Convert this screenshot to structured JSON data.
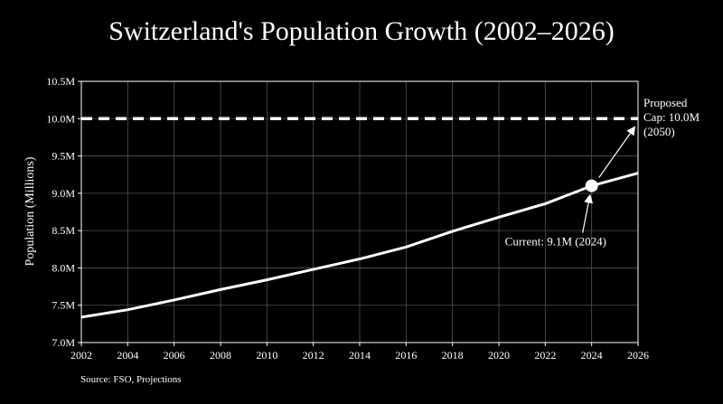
{
  "chart_data": {
    "type": "line",
    "title": "Switzerland's Population Growth (2002–2026)",
    "ylabel": "Population (Millions)",
    "xlabel": "",
    "xlim": [
      2002,
      2026
    ],
    "ylim": [
      7.0,
      10.5
    ],
    "x_ticks": [
      "2002",
      "2004",
      "2006",
      "2008",
      "2010",
      "2012",
      "2014",
      "2016",
      "2018",
      "2020",
      "2022",
      "2024",
      "2026"
    ],
    "y_ticks": [
      "7.0M",
      "7.5M",
      "8.0M",
      "8.5M",
      "9.0M",
      "9.5M",
      "10.0M",
      "10.5M"
    ],
    "grid": true,
    "series": [
      {
        "x": [
          2002,
          2004,
          2006,
          2008,
          2010,
          2012,
          2014,
          2016,
          2018,
          2020,
          2022,
          2024,
          2026
        ],
        "y": [
          7.34,
          7.44,
          7.57,
          7.71,
          7.84,
          7.98,
          8.12,
          8.28,
          8.49,
          8.68,
          8.86,
          9.1,
          9.27
        ],
        "color": "#ffffff"
      }
    ],
    "reference_line": {
      "y": 10.0,
      "style": "dashed",
      "color": "#ffffff"
    },
    "highlight_point": {
      "x": 2024,
      "y": 9.1
    },
    "annotations": {
      "current": "Current: 9.1M (2024)",
      "cap_lines": [
        "Proposed",
        "Cap: 10.0M",
        "(2050)"
      ]
    }
  },
  "source": "Source: FSO, Projections"
}
